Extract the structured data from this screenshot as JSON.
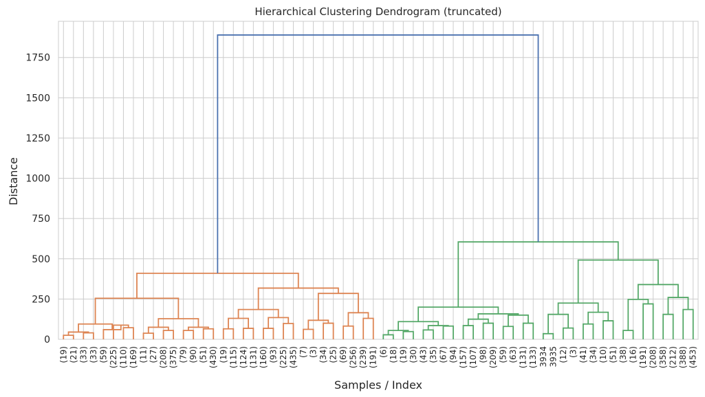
{
  "chart_data": {
    "type": "dendrogram",
    "title": "Hierarchical Clustering Dendrogram (truncated)",
    "xlabel": "Samples / Index",
    "ylabel": "Distance",
    "ylim": [
      0,
      1975
    ],
    "yticks": [
      0,
      250,
      500,
      750,
      1000,
      1250,
      1500,
      1750
    ],
    "grid": true,
    "leaf_labels": [
      "(19)",
      "(21)",
      "(33)",
      "(33)",
      "(59)",
      "(225)",
      "(110)",
      "(169)",
      "(11)",
      "(27)",
      "(208)",
      "(375)",
      "(79)",
      "(90)",
      "(51)",
      "(430)",
      "(19)",
      "(115)",
      "(124)",
      "(131)",
      "(160)",
      "(93)",
      "(225)",
      "(435)",
      "(7)",
      "(3)",
      "(34)",
      "(25)",
      "(69)",
      "(256)",
      "(239)",
      "(191)",
      "(6)",
      "(18)",
      "(19)",
      "(30)",
      "(43)",
      "(35)",
      "(67)",
      "(94)",
      "(157)",
      "(107)",
      "(98)",
      "(209)",
      "(59)",
      "(63)",
      "(131)",
      "(133)",
      "3934",
      "3935",
      "(12)",
      "(3)",
      "(41)",
      "(34)",
      "(10)",
      "(51)",
      "(38)",
      "(16)",
      "(191)",
      "(208)",
      "(358)",
      "(212)",
      "(388)",
      "(453)"
    ],
    "links": [
      {
        "l": 0,
        "r": 1,
        "h": 25,
        "c": "orange"
      },
      {
        "l": 2,
        "r": 3,
        "h": 40,
        "c": "orange"
      },
      {
        "l": "c0",
        "r": "c1",
        "h": 45,
        "c": "orange"
      },
      {
        "l": 6,
        "r": 7,
        "h": 72,
        "c": "orange"
      },
      {
        "l": 5,
        "r": "c3",
        "h": 88,
        "c": "orange"
      },
      {
        "l": 4,
        "r": "c4",
        "h": 60,
        "c": "orange"
      },
      {
        "l": "c2",
        "r": "c5",
        "h": 95,
        "c": "orange"
      },
      {
        "l": 8,
        "r": 9,
        "h": 38,
        "c": "orange"
      },
      {
        "l": 10,
        "r": 11,
        "h": 55,
        "c": "orange"
      },
      {
        "l": "c7",
        "r": "c8",
        "h": 75,
        "c": "orange"
      },
      {
        "l": 12,
        "r": 13,
        "h": 55,
        "c": "orange"
      },
      {
        "l": 14,
        "r": 15,
        "h": 65,
        "c": "orange"
      },
      {
        "l": "c10",
        "r": "c11",
        "h": 75,
        "c": "orange"
      },
      {
        "l": "c9",
        "r": "c12",
        "h": 128,
        "c": "orange"
      },
      {
        "l": "c6",
        "r": "c13",
        "h": 255,
        "c": "orange"
      },
      {
        "l": 16,
        "r": 17,
        "h": 65,
        "c": "orange"
      },
      {
        "l": 18,
        "r": 19,
        "h": 68,
        "c": "orange"
      },
      {
        "l": "c15",
        "r": "c16",
        "h": 130,
        "c": "orange"
      },
      {
        "l": 20,
        "r": 21,
        "h": 68,
        "c": "orange"
      },
      {
        "l": 22,
        "r": 23,
        "h": 98,
        "c": "orange"
      },
      {
        "l": "c18",
        "r": "c19",
        "h": 135,
        "c": "orange"
      },
      {
        "l": "c17",
        "r": "c20",
        "h": 185,
        "c": "orange"
      },
      {
        "l": 24,
        "r": 25,
        "h": 62,
        "c": "orange"
      },
      {
        "l": 26,
        "r": 27,
        "h": 100,
        "c": "orange"
      },
      {
        "l": "c22",
        "r": "c23",
        "h": 118,
        "c": "orange"
      },
      {
        "l": 28,
        "r": 29,
        "h": 82,
        "c": "orange"
      },
      {
        "l": 30,
        "r": 31,
        "h": 130,
        "c": "orange"
      },
      {
        "l": "c25",
        "r": "c26",
        "h": 165,
        "c": "orange"
      },
      {
        "l": "c24",
        "r": "c27",
        "h": 285,
        "c": "orange"
      },
      {
        "l": "c21",
        "r": "c28",
        "h": 318,
        "c": "orange"
      },
      {
        "l": "c14",
        "r": "c29",
        "h": 410,
        "c": "orange"
      },
      {
        "l": 32,
        "r": 33,
        "h": 28,
        "c": "green"
      },
      {
        "l": 34,
        "r": 35,
        "h": 48,
        "c": "green"
      },
      {
        "l": "c31",
        "r": "c32",
        "h": 55,
        "c": "green"
      },
      {
        "l": 36,
        "r": 37,
        "h": 58,
        "c": "green"
      },
      {
        "l": 38,
        "r": 39,
        "h": 82,
        "c": "green"
      },
      {
        "l": "c34",
        "r": "c35",
        "h": 85,
        "c": "green"
      },
      {
        "l": "c33",
        "r": "c36",
        "h": 110,
        "c": "green"
      },
      {
        "l": 40,
        "r": 41,
        "h": 85,
        "c": "green"
      },
      {
        "l": 42,
        "r": 43,
        "h": 100,
        "c": "green"
      },
      {
        "l": "c38",
        "r": "c39",
        "h": 125,
        "c": "green"
      },
      {
        "l": 44,
        "r": 45,
        "h": 80,
        "c": "green"
      },
      {
        "l": 46,
        "r": 47,
        "h": 100,
        "c": "green"
      },
      {
        "l": "c41",
        "r": "c42",
        "h": 150,
        "c": "green"
      },
      {
        "l": "c40",
        "r": "c43",
        "h": 158,
        "c": "green"
      },
      {
        "l": "c37",
        "r": "c44",
        "h": 200,
        "c": "green"
      },
      {
        "l": 48,
        "r": 49,
        "h": 35,
        "c": "green"
      },
      {
        "l": 50,
        "r": 51,
        "h": 70,
        "c": "green"
      },
      {
        "l": "c46",
        "r": "c47",
        "h": 155,
        "c": "green"
      },
      {
        "l": 52,
        "r": 53,
        "h": 95,
        "c": "green"
      },
      {
        "l": 54,
        "r": 55,
        "h": 115,
        "c": "green"
      },
      {
        "l": "c49",
        "r": "c50",
        "h": 168,
        "c": "green"
      },
      {
        "l": "c48",
        "r": "c51",
        "h": 225,
        "c": "green"
      },
      {
        "l": 56,
        "r": 57,
        "h": 55,
        "c": "green"
      },
      {
        "l": 58,
        "r": 59,
        "h": 220,
        "c": "green"
      },
      {
        "l": "c53",
        "r": "c54",
        "h": 248,
        "c": "green"
      },
      {
        "l": 60,
        "r": 61,
        "h": 155,
        "c": "green"
      },
      {
        "l": 62,
        "r": 63,
        "h": 185,
        "c": "green"
      },
      {
        "l": "c56",
        "r": "c57",
        "h": 260,
        "c": "green"
      },
      {
        "l": "c55",
        "r": "c58",
        "h": 340,
        "c": "green"
      },
      {
        "l": "c52",
        "r": "c59",
        "h": 492,
        "c": "green"
      },
      {
        "l": "c45",
        "r": "c60",
        "h": 605,
        "c": "green"
      },
      {
        "l": "c30",
        "r": "c61",
        "h": 1890,
        "c": "blue"
      }
    ],
    "colors": {
      "orange": "#dd8452",
      "green": "#55a868",
      "blue": "#4c72b0"
    }
  }
}
